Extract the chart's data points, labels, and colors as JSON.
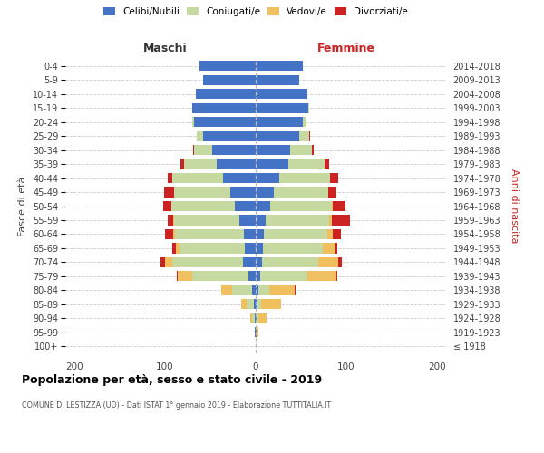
{
  "age_groups": [
    "100+",
    "95-99",
    "90-94",
    "85-89",
    "80-84",
    "75-79",
    "70-74",
    "65-69",
    "60-64",
    "55-59",
    "50-54",
    "45-49",
    "40-44",
    "35-39",
    "30-34",
    "25-29",
    "20-24",
    "15-19",
    "10-14",
    "5-9",
    "0-4"
  ],
  "birth_years": [
    "≤ 1918",
    "1919-1923",
    "1924-1928",
    "1929-1933",
    "1934-1938",
    "1939-1943",
    "1944-1948",
    "1949-1953",
    "1954-1958",
    "1959-1963",
    "1964-1968",
    "1969-1973",
    "1974-1978",
    "1979-1983",
    "1984-1988",
    "1989-1993",
    "1994-1998",
    "1999-2003",
    "2004-2008",
    "2009-2013",
    "2014-2018"
  ],
  "maschi_celibi": [
    0,
    1,
    1,
    2,
    4,
    8,
    14,
    12,
    13,
    18,
    23,
    28,
    36,
    43,
    48,
    58,
    68,
    70,
    66,
    58,
    62
  ],
  "maschi_coniugati": [
    0,
    0,
    3,
    8,
    22,
    62,
    78,
    72,
    76,
    72,
    70,
    62,
    56,
    36,
    20,
    7,
    2,
    0,
    0,
    0,
    0
  ],
  "maschi_vedovi": [
    0,
    0,
    2,
    6,
    12,
    16,
    8,
    4,
    2,
    1,
    0,
    0,
    0,
    0,
    0,
    0,
    0,
    0,
    0,
    0,
    0
  ],
  "maschi_divorziati": [
    0,
    0,
    0,
    0,
    0,
    1,
    5,
    4,
    9,
    6,
    9,
    11,
    5,
    4,
    1,
    0,
    0,
    0,
    0,
    0,
    0
  ],
  "femmine_nubili": [
    0,
    1,
    1,
    2,
    3,
    5,
    7,
    8,
    9,
    11,
    16,
    20,
    26,
    36,
    38,
    48,
    52,
    58,
    57,
    48,
    52
  ],
  "femmine_coniugate": [
    0,
    0,
    2,
    4,
    12,
    52,
    62,
    66,
    70,
    70,
    68,
    60,
    56,
    40,
    24,
    11,
    4,
    1,
    0,
    0,
    0
  ],
  "femmine_vedove": [
    0,
    2,
    9,
    22,
    28,
    32,
    22,
    14,
    6,
    3,
    1,
    0,
    0,
    0,
    0,
    0,
    0,
    0,
    0,
    0,
    0
  ],
  "femmine_divorziate": [
    0,
    0,
    0,
    0,
    1,
    1,
    4,
    2,
    9,
    20,
    14,
    9,
    9,
    5,
    2,
    1,
    0,
    0,
    0,
    0,
    0
  ],
  "color_celibi": "#4472c4",
  "color_coniugati": "#c5d9a0",
  "color_vedovi": "#f0c060",
  "color_divorziati": "#cc2222",
  "xlim": 210,
  "title": "Popolazione per età, sesso e stato civile - 2019",
  "subtitle": "COMUNE DI LESTIZZA (UD) - Dati ISTAT 1° gennaio 2019 - Elaborazione TUTTITALIA.IT",
  "ylabel_left": "Fasce di età",
  "ylabel_right": "Anni di nascita",
  "label_maschi": "Maschi",
  "label_femmine": "Femmine"
}
